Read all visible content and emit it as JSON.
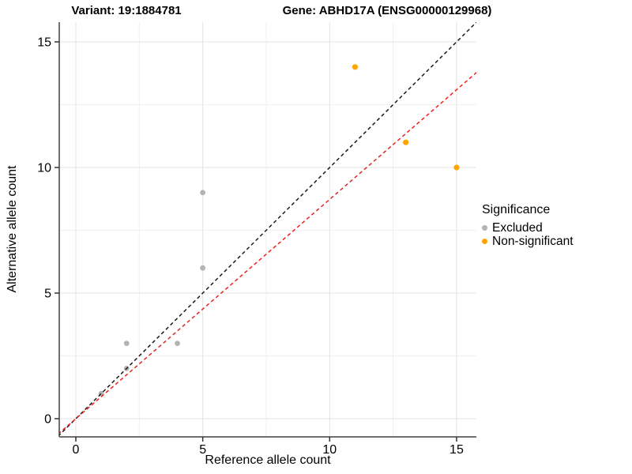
{
  "chart_data": {
    "type": "scatter",
    "titles": {
      "left": "Variant: 19:1884781",
      "right": "Gene: ABHD17A (ENSG00000129968)"
    },
    "xlabel": "Reference allele count",
    "ylabel": "Alternative allele count",
    "xlim": [
      -0.7,
      15.8
    ],
    "ylim": [
      -0.7,
      15.8
    ],
    "x_major_ticks": [
      0,
      5,
      10,
      15
    ],
    "y_major_ticks": [
      0,
      5,
      10,
      15
    ],
    "x_minor_gridlines": [
      2.5,
      7.5,
      12.5
    ],
    "y_minor_gridlines": [
      2.5,
      7.5,
      12.5
    ],
    "grid": {
      "major_color": "#E3E3E3",
      "minor_color": "#F1F1F1",
      "visible": true
    },
    "axis_color": "#6e6e6e",
    "series": [
      {
        "name": "Excluded",
        "color": "#B3B3B3",
        "marker_radius": 3.4,
        "points": [
          [
            1,
            1
          ],
          [
            2,
            2
          ],
          [
            2,
            3
          ],
          [
            4,
            3
          ],
          [
            5,
            6
          ],
          [
            5,
            9
          ]
        ]
      },
      {
        "name": "Non-significant",
        "color": "#FFA500",
        "marker_radius": 3.6,
        "points": [
          [
            11,
            14
          ],
          [
            13,
            11
          ],
          [
            15,
            10
          ]
        ]
      }
    ],
    "lines": [
      {
        "name": "identity-line",
        "color": "#1A1A1A",
        "slope": 1.0,
        "intercept": 0,
        "dashed": true
      },
      {
        "name": "fit-line",
        "color": "#E8231C",
        "slope": 0.873,
        "intercept": 0,
        "dashed": true
      }
    ],
    "legend": {
      "title": "Significance",
      "position": "right",
      "entries": [
        {
          "label": "Excluded",
          "color": "#B3B3B3"
        },
        {
          "label": "Non-significant",
          "color": "#FFA500"
        }
      ]
    }
  }
}
